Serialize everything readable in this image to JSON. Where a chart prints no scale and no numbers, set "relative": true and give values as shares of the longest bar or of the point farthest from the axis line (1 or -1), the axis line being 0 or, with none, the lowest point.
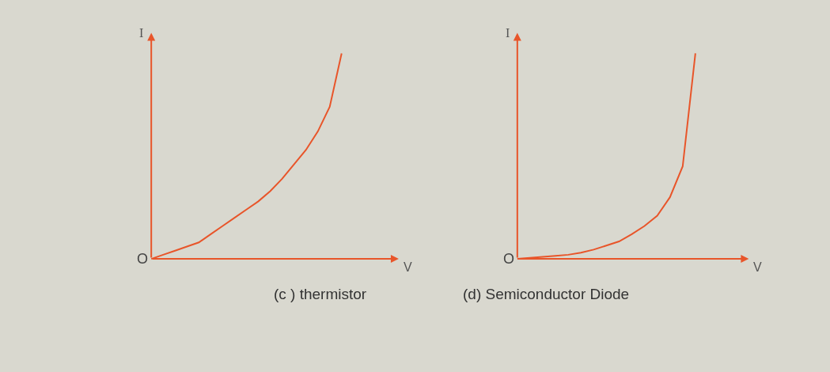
{
  "chart_data": [
    {
      "type": "line",
      "title": "(c ) thermistor",
      "xlabel": "V",
      "ylabel": "I",
      "relative": true,
      "annotations": [
        "O"
      ],
      "categories": [
        null,
        null,
        null,
        null,
        null,
        null,
        null,
        null,
        null,
        null,
        null,
        null,
        null,
        null,
        null,
        null,
        null
      ],
      "series": [
        {
          "color": "#e8552a",
          "values": [
            0,
            0.02,
            0.04,
            0.06,
            0.08,
            0.12,
            0.16,
            0.2,
            0.24,
            0.28,
            0.33,
            0.39,
            0.46,
            0.53,
            0.62,
            0.74,
            1
          ]
        }
      ]
    },
    {
      "type": "line",
      "title": "(d) Semiconductor Diode",
      "xlabel": "V",
      "ylabel": "I",
      "relative": true,
      "annotations": [
        "O"
      ],
      "categories": [
        null,
        null,
        null,
        null,
        null,
        null,
        null,
        null,
        null,
        null,
        null,
        null,
        null,
        null,
        null
      ],
      "series": [
        {
          "color": "#e8552a",
          "values": [
            0,
            0.005,
            0.01,
            0.015,
            0.02,
            0.03,
            0.045,
            0.065,
            0.085,
            0.12,
            0.16,
            0.21,
            0.3,
            0.45,
            1
          ]
        }
      ]
    }
  ]
}
